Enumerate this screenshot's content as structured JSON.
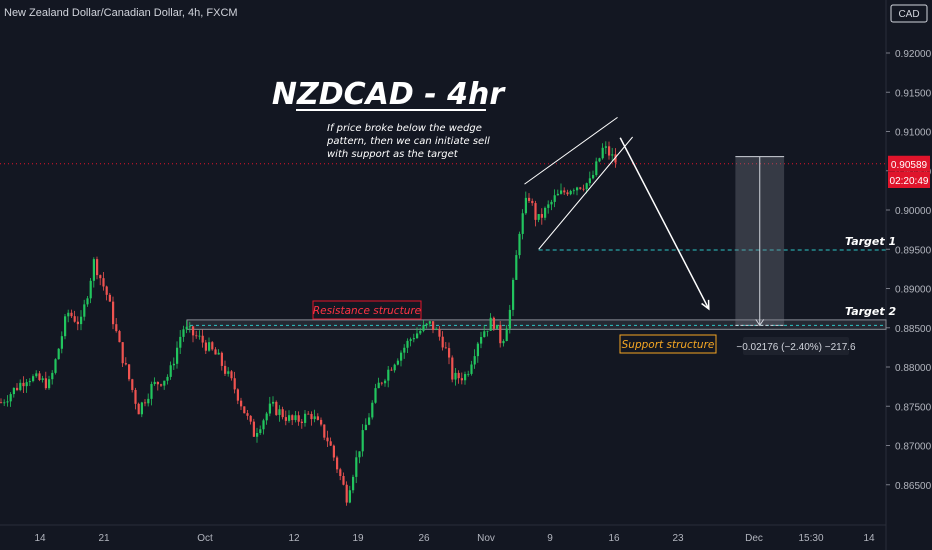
{
  "header": {
    "symbol_description": "New Zealand Dollar/Canadian Dollar, 4h, FXCM",
    "currency_button": "CAD"
  },
  "annotations": {
    "title": "NZDCAD - 4hr",
    "note_lines": [
      "If price broke below the wedge",
      "pattern, then we can initiate sell",
      "with support as the target"
    ],
    "resistance_label": "Resistance structure",
    "support_label": "Support structure",
    "target1_label": "Target 1",
    "target2_label": "Target 2",
    "measure_label": "−0.02176 (−2.40%) −217.6"
  },
  "price_axis": {
    "current_price": "0.90589",
    "countdown": "02:20:49"
  },
  "colors": {
    "background": "#131722",
    "bull": "#26a69a",
    "bull_body": "#22c55e",
    "bear": "#ef5350",
    "accent_red": "#e0142b",
    "target_line": "#2ec4c4",
    "support_label": "#f5a623"
  },
  "chart_data": {
    "type": "candlestick",
    "y_axis": {
      "ticks": [
        0.92,
        0.915,
        0.91,
        0.905,
        0.9,
        0.895,
        0.89,
        0.885,
        0.88,
        0.875,
        0.87,
        0.865
      ],
      "tick_labels": [
        "0.92000",
        "0.91500",
        "0.91000",
        "0.90500",
        "0.90000",
        "0.89500",
        "0.89000",
        "0.88500",
        "0.88000",
        "0.87500",
        "0.87000",
        "0.86500"
      ],
      "range": [
        0.8615,
        0.9248
      ]
    },
    "x_axis": {
      "tick_labels": [
        "14",
        "21",
        "Oct",
        "12",
        "19",
        "26",
        "Nov",
        "9",
        "16",
        "23",
        "Dec",
        "15:30",
        "14"
      ],
      "grid": false
    },
    "last_price": 0.90589,
    "price_path": [
      [
        0,
        0.8755
      ],
      [
        0.03,
        0.8788
      ],
      [
        0.055,
        0.8778
      ],
      [
        0.075,
        0.887
      ],
      [
        0.09,
        0.8855
      ],
      [
        0.105,
        0.8935
      ],
      [
        0.12,
        0.889
      ],
      [
        0.135,
        0.882
      ],
      [
        0.155,
        0.8745
      ],
      [
        0.17,
        0.8775
      ],
      [
        0.19,
        0.879
      ],
      [
        0.205,
        0.885
      ],
      [
        0.225,
        0.8835
      ],
      [
        0.245,
        0.8812
      ],
      [
        0.265,
        0.877
      ],
      [
        0.285,
        0.8715
      ],
      [
        0.305,
        0.875
      ],
      [
        0.33,
        0.873
      ],
      [
        0.35,
        0.874
      ],
      [
        0.37,
        0.8705
      ],
      [
        0.39,
        0.8635
      ],
      [
        0.405,
        0.87
      ],
      [
        0.425,
        0.8775
      ],
      [
        0.445,
        0.881
      ],
      [
        0.465,
        0.884
      ],
      [
        0.485,
        0.8855
      ],
      [
        0.5,
        0.883
      ],
      [
        0.51,
        0.8785
      ],
      [
        0.525,
        0.879
      ],
      [
        0.54,
        0.884
      ],
      [
        0.555,
        0.886
      ],
      [
        0.565,
        0.883
      ],
      [
        0.575,
        0.8875
      ],
      [
        0.585,
        0.8975
      ],
      [
        0.595,
        0.902
      ],
      [
        0.605,
        0.8985
      ],
      [
        0.625,
        0.9015
      ],
      [
        0.645,
        0.903
      ],
      [
        0.665,
        0.9035
      ],
      [
        0.68,
        0.908
      ],
      [
        0.695,
        0.906
      ]
    ],
    "wedge": {
      "upper": [
        [
          0.592,
          0.9033
        ],
        [
          0.697,
          0.9118
        ]
      ],
      "lower": [
        [
          0.608,
          0.895
        ],
        [
          0.714,
          0.9093
        ]
      ]
    },
    "resistance_zone": [
      0.8848,
      0.886
    ],
    "target1_price": 0.8949,
    "target2_price": 0.8853,
    "projection": {
      "from": [
        0.7,
        0.9092
      ],
      "to": [
        0.8,
        0.8874
      ]
    },
    "measure_box": {
      "x": [
        0.83,
        0.885
      ],
      "top": 0.9068,
      "bottom": 0.8853
    }
  }
}
